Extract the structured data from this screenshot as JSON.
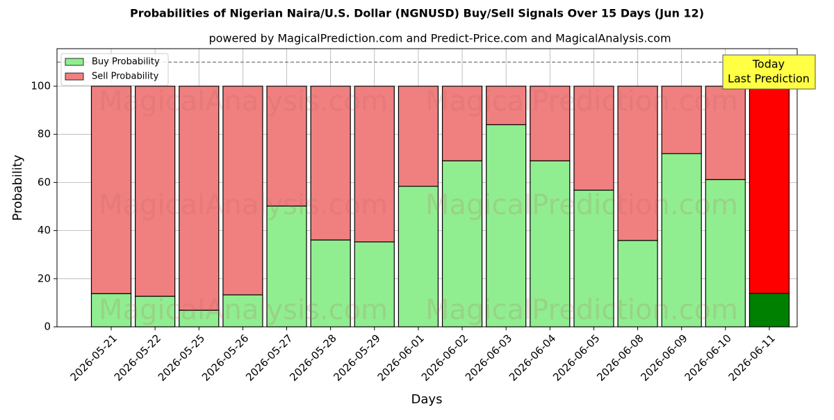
{
  "chart_data": {
    "type": "stacked_bar",
    "title": "Probabilities of Nigerian Naira/U.S. Dollar (NGNUSD) Buy/Sell Signals Over 15 Days (Jun 12)",
    "subtitle": "powered by MagicalPrediction.com and Predict-Price.com and MagicalAnalysis.com",
    "x_label": "Days",
    "y_label": "Probability",
    "categories": [
      "2026-05-21",
      "2026-05-22",
      "2026-05-25",
      "2026-05-26",
      "2026-05-27",
      "2026-05-28",
      "2026-05-29",
      "2026-06-01",
      "2026-06-02",
      "2026-06-03",
      "2026-06-04",
      "2026-06-05",
      "2026-06-08",
      "2026-06-09",
      "2026-06-10",
      "2026-06-11"
    ],
    "series": [
      {
        "name": "Buy Probability",
        "color": "#90ee90",
        "today_color": "#008000",
        "values": [
          13.8,
          12.7,
          6.9,
          13.3,
          50.2,
          36.1,
          35.3,
          58.4,
          69.0,
          84.0,
          69.0,
          56.8,
          35.9,
          72.0,
          61.2,
          13.9
        ]
      },
      {
        "name": "Sell Probability",
        "color": "#f08080",
        "today_color": "#ff0000",
        "values": [
          86.2,
          87.3,
          93.1,
          86.7,
          49.8,
          63.9,
          64.7,
          41.6,
          31.0,
          16.0,
          31.0,
          43.2,
          64.1,
          28.0,
          38.8,
          86.1
        ]
      }
    ],
    "ylim": [
      0,
      115.6
    ],
    "yticks": [
      0,
      20,
      40,
      60,
      80,
      100
    ],
    "grid": true,
    "legend": "upper left",
    "reference_line": 110,
    "annotation": [
      "Today",
      "Last Prediction"
    ],
    "watermarks": [
      "MagicalAnalysis.com",
      "MagicalPrediction.com",
      "MagicalAnalysis.com",
      "MagicalPrediction.com",
      "MagicalAnalysis.com",
      "MagicalPrediction.com"
    ]
  }
}
